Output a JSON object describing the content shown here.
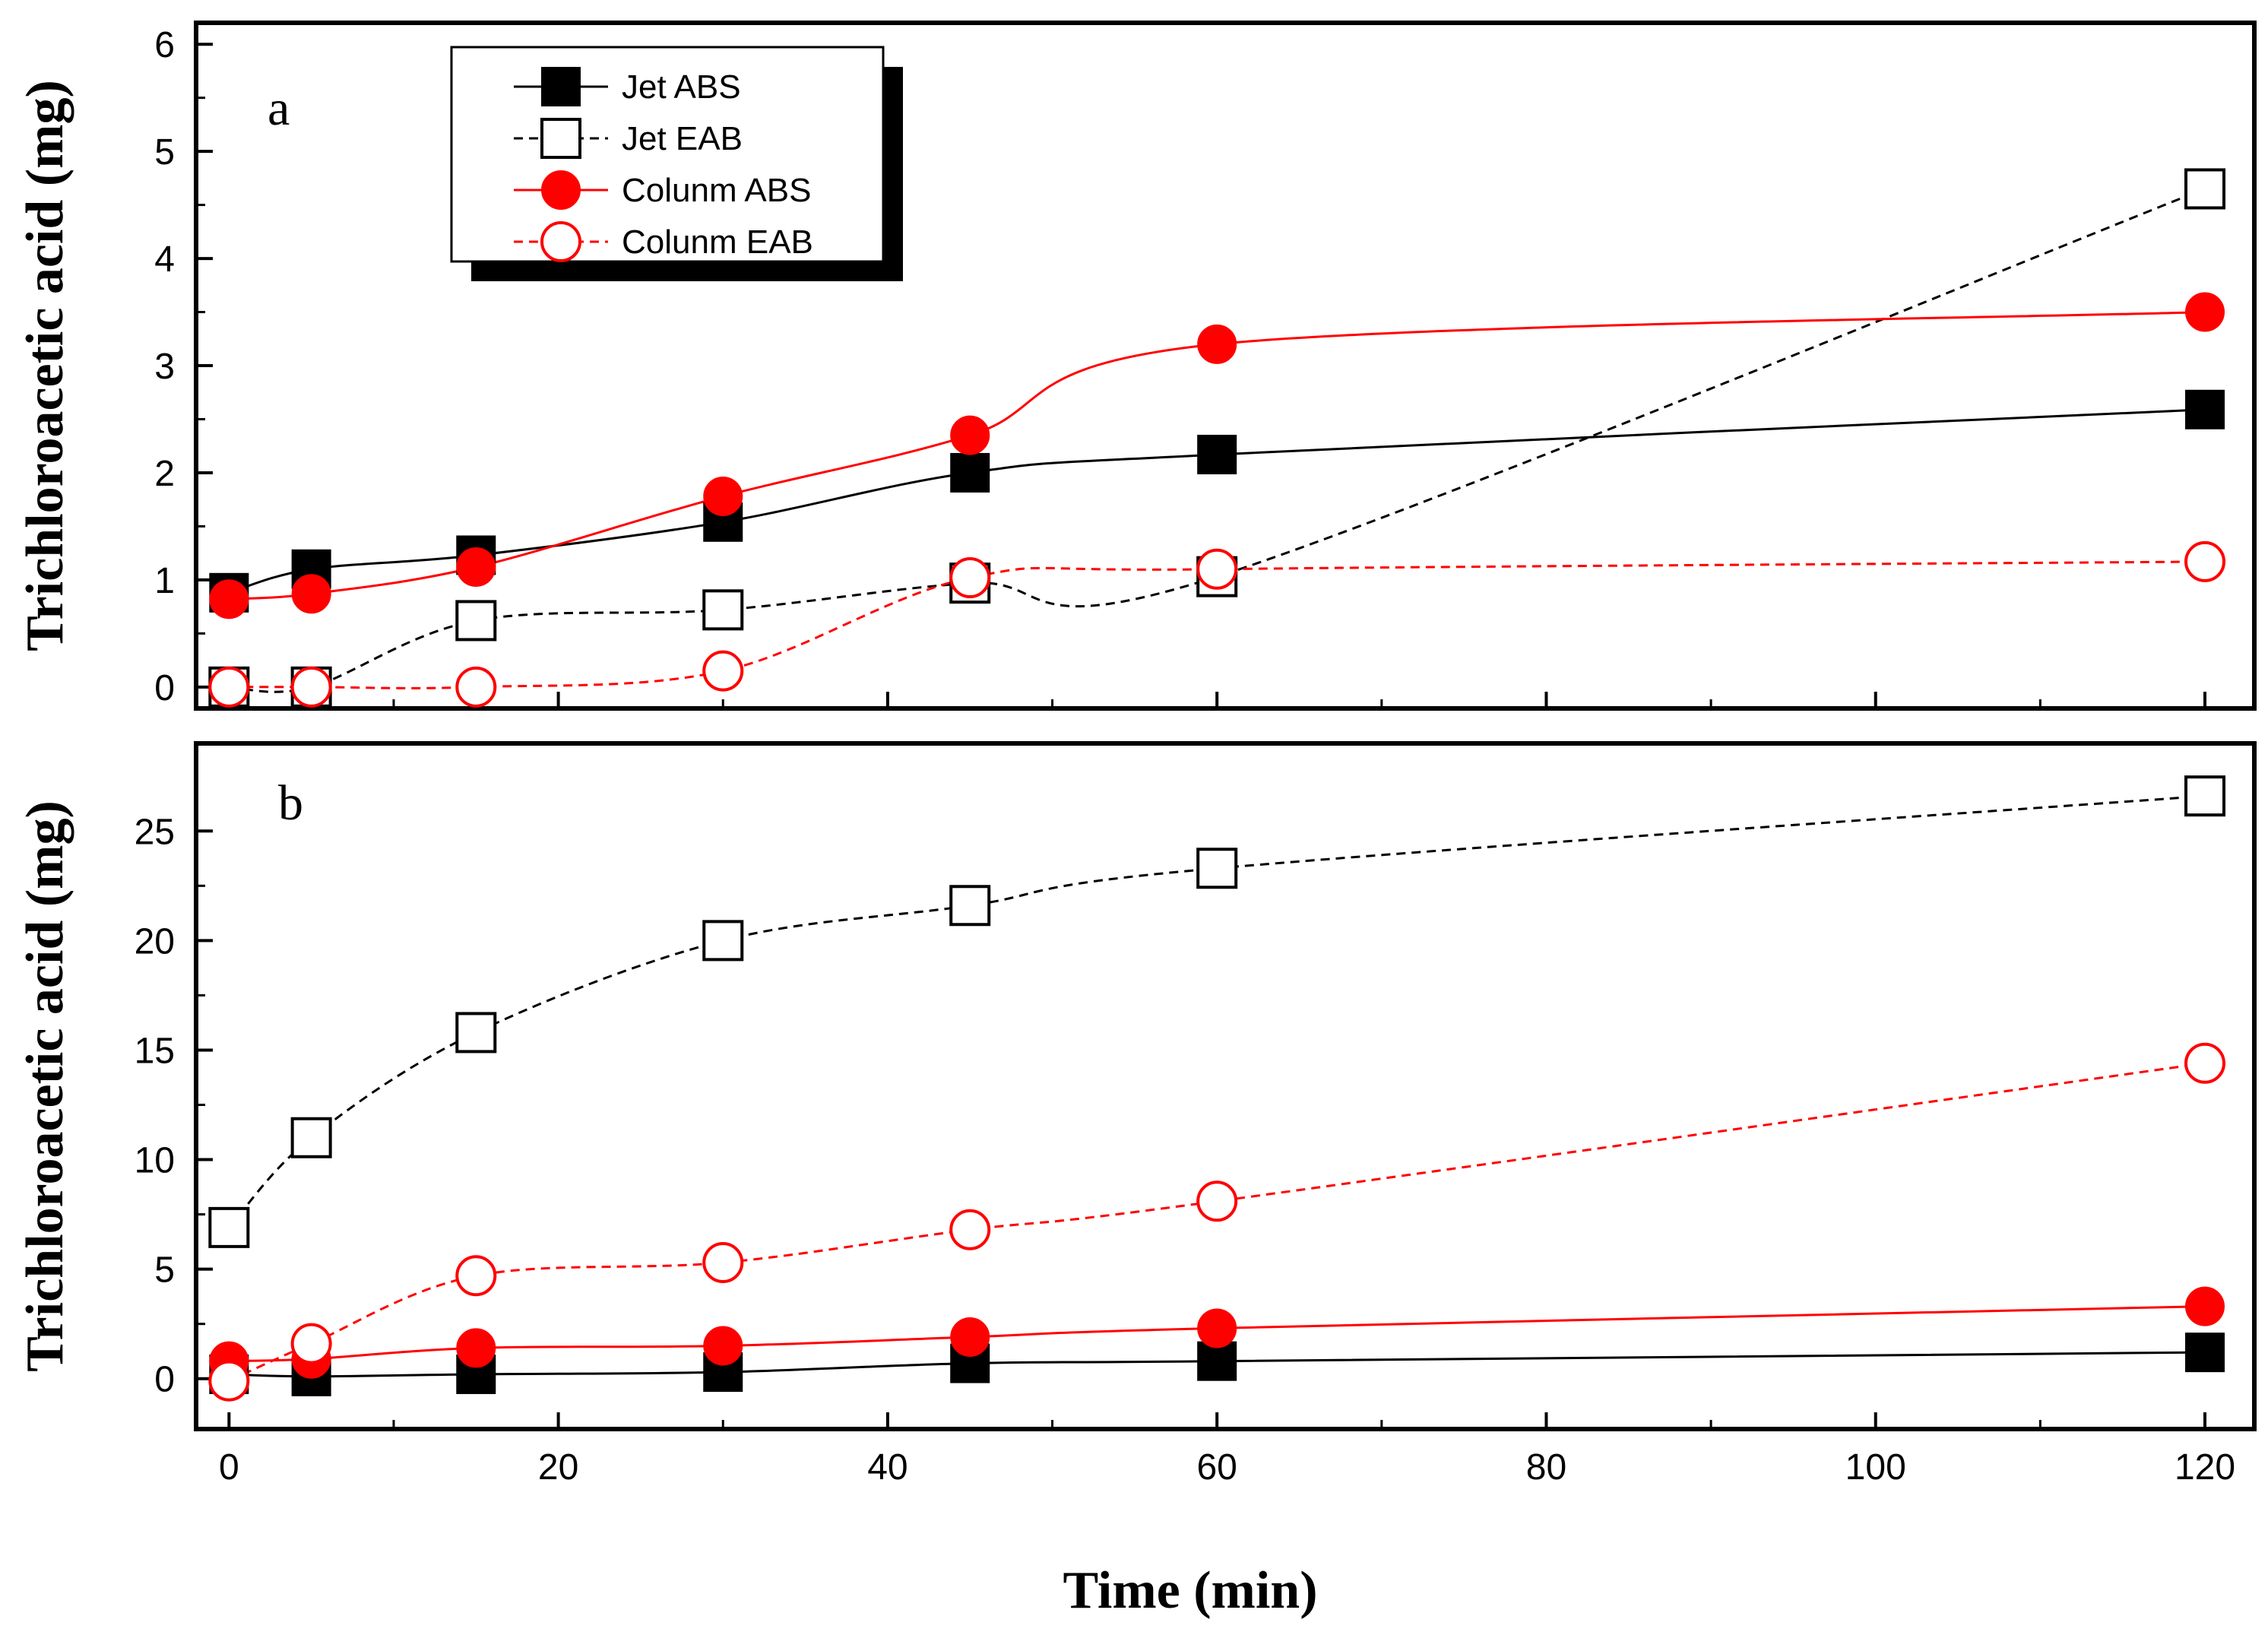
{
  "chart_data": [
    {
      "type": "line",
      "panel": "a",
      "title": "",
      "xlabel": "",
      "ylabel": "Trichloroacetic acid (mg)",
      "xlim": [
        -2,
        123
      ],
      "ylim": [
        -0.2,
        6.2
      ],
      "xticks": [
        0,
        20,
        40,
        60,
        80,
        100,
        120
      ],
      "yticks": [
        0,
        1,
        2,
        3,
        4,
        5,
        6
      ],
      "x": [
        0,
        5,
        15,
        30,
        45,
        60,
        120
      ],
      "grid": false,
      "legend_position": "top-left",
      "series": [
        {
          "name": "Jet ABS",
          "color": "#000000",
          "marker": "square-filled",
          "dash": "solid",
          "values": [
            0.88,
            1.1,
            1.23,
            1.54,
            2.0,
            2.17,
            2.59
          ]
        },
        {
          "name": "Jet EAB",
          "color": "#000000",
          "marker": "square-open",
          "dash": "dashed",
          "values": [
            0.0,
            0.0,
            0.62,
            0.72,
            0.97,
            1.03,
            4.65
          ]
        },
        {
          "name": "Colunm ABS",
          "color": "#ff0000",
          "marker": "circle-filled",
          "dash": "solid",
          "values": [
            0.82,
            0.87,
            1.12,
            1.78,
            2.35,
            3.2,
            3.5
          ]
        },
        {
          "name": "Colunm EAB",
          "color": "#ff0000",
          "marker": "circle-open",
          "dash": "dashed",
          "values": [
            0.0,
            0.0,
            0.0,
            0.15,
            1.02,
            1.1,
            1.17
          ]
        }
      ]
    },
    {
      "type": "line",
      "panel": "b",
      "title": "",
      "xlabel": "Time (min)",
      "ylabel": "Trichloroacetic acid (mg)",
      "xlim": [
        -2,
        123
      ],
      "ylim": [
        -2.3,
        29.0
      ],
      "xticks": [
        0,
        20,
        40,
        60,
        80,
        100,
        120
      ],
      "yticks": [
        0,
        5,
        10,
        15,
        20,
        25
      ],
      "x": [
        0,
        5,
        15,
        30,
        45,
        60,
        120
      ],
      "grid": false,
      "series": [
        {
          "name": "Jet ABS",
          "color": "#000000",
          "marker": "square-filled",
          "dash": "solid",
          "values": [
            0.2,
            0.1,
            0.2,
            0.3,
            0.7,
            0.8,
            1.2
          ]
        },
        {
          "name": "Jet EAB",
          "color": "#000000",
          "marker": "square-open",
          "dash": "dashed",
          "values": [
            6.9,
            11.0,
            15.8,
            20.0,
            21.6,
            23.3,
            26.6
          ]
        },
        {
          "name": "Colunm ABS",
          "color": "#ff0000",
          "marker": "circle-filled",
          "dash": "solid",
          "values": [
            0.8,
            0.9,
            1.4,
            1.5,
            1.9,
            2.3,
            3.3
          ]
        },
        {
          "name": "Colunm EAB",
          "color": "#ff0000",
          "marker": "circle-open",
          "dash": "dashed",
          "values": [
            -0.1,
            1.6,
            4.7,
            5.3,
            6.8,
            8.1,
            14.4
          ]
        }
      ]
    }
  ]
}
